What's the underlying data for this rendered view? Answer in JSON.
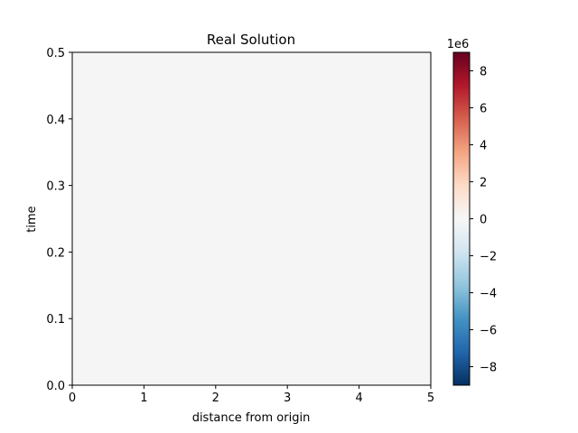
{
  "chart_data": {
    "type": "heatmap",
    "title": "Real Solution",
    "xlabel": "distance from origin",
    "ylabel": "time",
    "xlim": [
      0,
      5
    ],
    "ylim": [
      0,
      0.5
    ],
    "xticks": [
      "0",
      "1",
      "2",
      "3",
      "4",
      "5"
    ],
    "yticks": [
      "0.0",
      "0.1",
      "0.2",
      "0.3",
      "0.4",
      "0.5"
    ],
    "values_note": "",
    "field_value": 0,
    "colormap": "RdBu_r",
    "colorbar": {
      "range": [
        -9000000,
        9000000
      ],
      "ticks": [
        "−8",
        "−6",
        "−4",
        "−2",
        "0",
        "2",
        "4",
        "6",
        "8"
      ],
      "tick_values": [
        -8,
        -6,
        -4,
        -2,
        0,
        2,
        4,
        6,
        8
      ],
      "scale_label": "1e6"
    },
    "colors": {
      "field": "#f5f5f5",
      "stops": [
        "#053061",
        "#2166ac",
        "#4393c3",
        "#92c5de",
        "#d1e5f0",
        "#f7f7f7",
        "#fddbc7",
        "#f4a582",
        "#d6604d",
        "#b2182b",
        "#67001f"
      ]
    }
  }
}
